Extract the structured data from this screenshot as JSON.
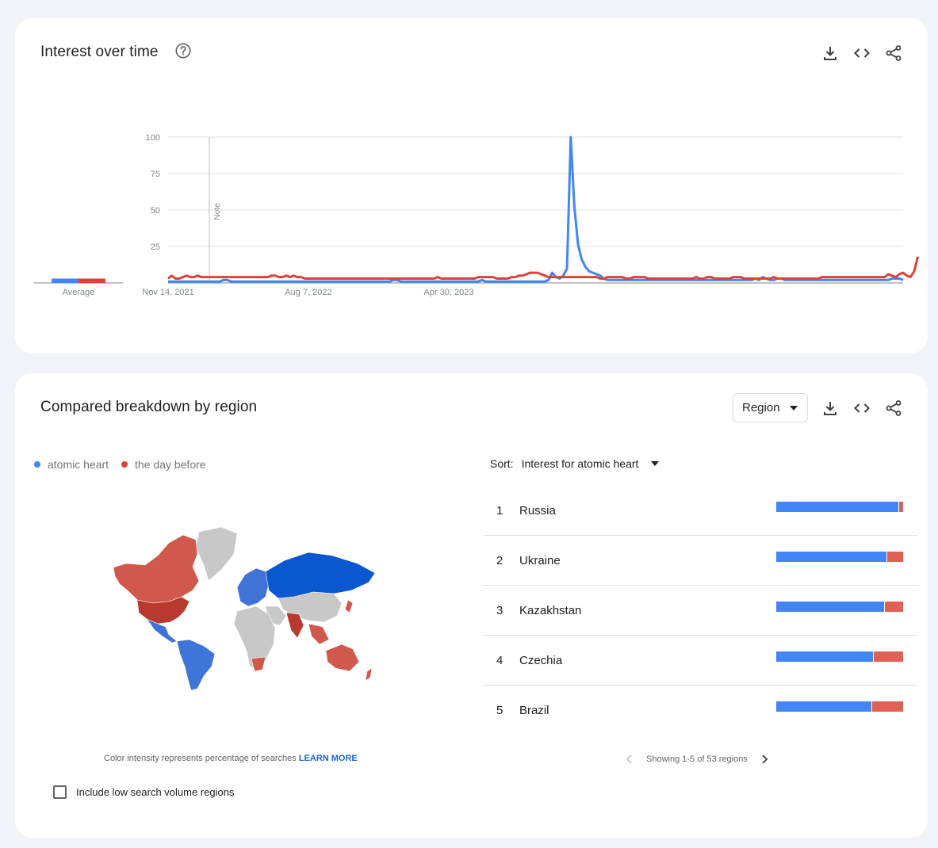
{
  "interest_over_time": {
    "title": "Interest over time",
    "average_label": "Average",
    "note_label": "Note",
    "colors": {
      "series1": "#4285f4",
      "series2": "#db4437"
    }
  },
  "chart_data": {
    "type": "line",
    "ylim": [
      0,
      100
    ],
    "yticks": [
      25,
      50,
      75,
      100
    ],
    "x_tick_labels": [
      "Nov 14, 2021",
      "Aug 7, 2022",
      "Apr 30, 2023"
    ],
    "x_start": "2021-11-14",
    "x_interval_days": 7,
    "average": {
      "atomic heart": 3,
      "the day before": 3
    },
    "series": [
      {
        "name": "atomic heart",
        "color": "#4285f4",
        "values": [
          1,
          1,
          1,
          1,
          1,
          1,
          1,
          1,
          1,
          1,
          1,
          1,
          1,
          1,
          1,
          2,
          2,
          1,
          1,
          1,
          1,
          1,
          1,
          1,
          1,
          1,
          1,
          1,
          1,
          1,
          1,
          1,
          1,
          1,
          1,
          1,
          1,
          1,
          1,
          1,
          1,
          1,
          1,
          1,
          1,
          1,
          1,
          1,
          1,
          1,
          1,
          1,
          1,
          1,
          1,
          1,
          1,
          1,
          1,
          1,
          1,
          2,
          2,
          1,
          1,
          1,
          1,
          1,
          1,
          1,
          1,
          1,
          1,
          1,
          1,
          1,
          1,
          1,
          1,
          1,
          1,
          1,
          1,
          1,
          1,
          2,
          1,
          1,
          1,
          1,
          1,
          1,
          1,
          1,
          1,
          1,
          1,
          1,
          1,
          1,
          1,
          1,
          1,
          2,
          7,
          4,
          3,
          5,
          10,
          100,
          52,
          26,
          16,
          11,
          8,
          7,
          6,
          5,
          3,
          2,
          2,
          2,
          2,
          2,
          2,
          2,
          2,
          2,
          2,
          2,
          2,
          2,
          2,
          2,
          2,
          2,
          2,
          2,
          2,
          2,
          2,
          2,
          2,
          2,
          2,
          2,
          2,
          2,
          2,
          2,
          2,
          2,
          2,
          2,
          2,
          2,
          2,
          2,
          2,
          3,
          2,
          4,
          3,
          2,
          2,
          3,
          3,
          2,
          2,
          2,
          2,
          2,
          2,
          2,
          2,
          2,
          2,
          2,
          2,
          2,
          2,
          2,
          2,
          2,
          2,
          2,
          2,
          2,
          2,
          2,
          2,
          2,
          2,
          2,
          2,
          2,
          3,
          3,
          3,
          2
        ]
      },
      {
        "name": "the day before",
        "color": "#db4437",
        "values": [
          3,
          5,
          3,
          3,
          4,
          5,
          4,
          4,
          5,
          4,
          4,
          4,
          4,
          4,
          4,
          4,
          4,
          4,
          4,
          4,
          4,
          4,
          4,
          4,
          4,
          4,
          4,
          4,
          5,
          5,
          4,
          4,
          5,
          4,
          5,
          4,
          4,
          3,
          3,
          3,
          3,
          3,
          3,
          3,
          3,
          3,
          3,
          3,
          3,
          3,
          3,
          3,
          3,
          3,
          3,
          3,
          3,
          3,
          3,
          3,
          3,
          3,
          3,
          3,
          3,
          3,
          3,
          3,
          3,
          3,
          3,
          3,
          3,
          4,
          3,
          3,
          3,
          3,
          3,
          3,
          3,
          3,
          3,
          3,
          4,
          4,
          4,
          4,
          4,
          3,
          3,
          3,
          3,
          4,
          4,
          5,
          5,
          6,
          7,
          7,
          7,
          6,
          5,
          4,
          4,
          4,
          4,
          4,
          4,
          4,
          4,
          4,
          4,
          4,
          4,
          4,
          4,
          3,
          3,
          4,
          4,
          4,
          4,
          4,
          3,
          3,
          4,
          4,
          4,
          4,
          3,
          3,
          3,
          3,
          3,
          3,
          3,
          3,
          3,
          3,
          3,
          3,
          3,
          4,
          3,
          3,
          4,
          4,
          3,
          3,
          3,
          3,
          3,
          4,
          4,
          4,
          3,
          3,
          3,
          3,
          3,
          3,
          3,
          3,
          4,
          3,
          3,
          3,
          3,
          3,
          3,
          3,
          3,
          3,
          3,
          3,
          3,
          4,
          4,
          4,
          4,
          4,
          4,
          4,
          4,
          4,
          4,
          4,
          4,
          4,
          4,
          4,
          4,
          4,
          4,
          6,
          5,
          4,
          6,
          7,
          5,
          4,
          8,
          18
        ]
      }
    ]
  },
  "breakdown": {
    "title": "Compared breakdown by region",
    "region_select": "Region",
    "legend": [
      {
        "label": "atomic heart",
        "color": "#4285f4"
      },
      {
        "label": "the day before",
        "color": "#db4437"
      }
    ],
    "sort_label": "Sort:",
    "sort_value": "Interest for atomic heart",
    "map_note": "Color intensity represents percentage of searches",
    "learn_more": "LEARN MORE",
    "checkbox_label": "Include low search volume regions",
    "regions": [
      {
        "rank": "1",
        "name": "Russia",
        "share": 0.96
      },
      {
        "rank": "2",
        "name": "Ukraine",
        "share": 0.87
      },
      {
        "rank": "3",
        "name": "Kazakhstan",
        "share": 0.85
      },
      {
        "rank": "4",
        "name": "Czechia",
        "share": 0.76
      },
      {
        "rank": "5",
        "name": "Brazil",
        "share": 0.75
      }
    ],
    "pager_text": "Showing 1-5 of 53 regions"
  },
  "icons": [
    "help-icon",
    "download-icon",
    "embed-icon",
    "share-icon",
    "chevron-left-icon",
    "chevron-right-icon"
  ]
}
